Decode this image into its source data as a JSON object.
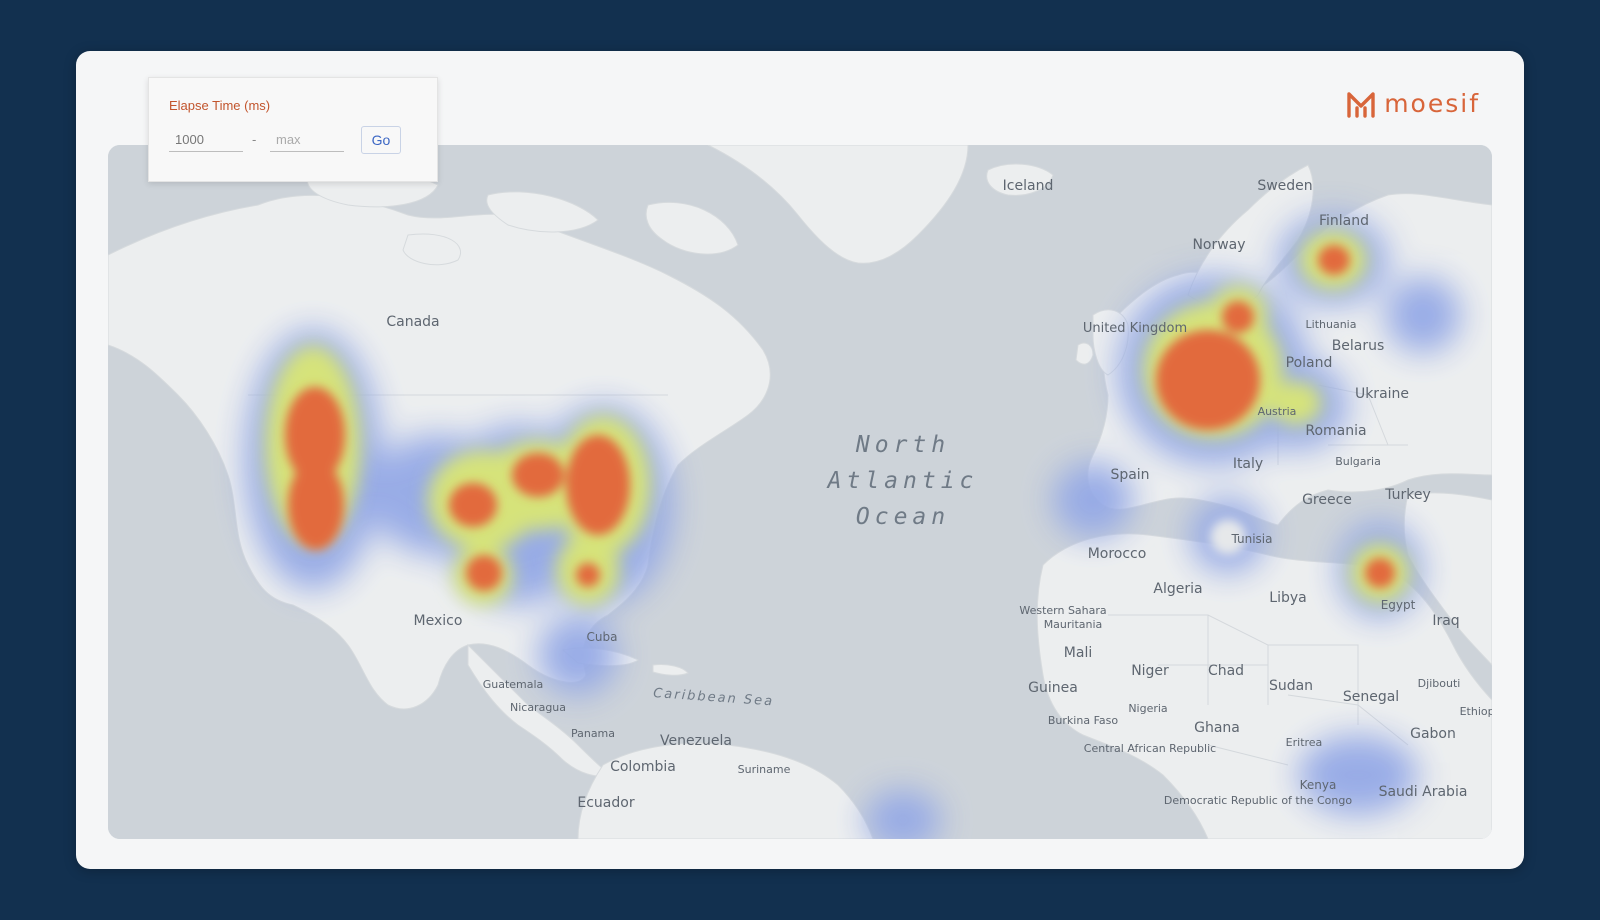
{
  "filter": {
    "title": "Elapse Time (ms)",
    "min_value": "1000",
    "max_placeholder": "max",
    "separator": "-",
    "go_label": "Go"
  },
  "brand": {
    "name": "moesif",
    "logo_icon": "moesif-logo-icon",
    "color": "#d8653a"
  },
  "map": {
    "ocean_label": [
      "North",
      "Atlantic",
      "Ocean"
    ],
    "sea_label": "Caribbean Sea",
    "place_labels": [
      "Canada",
      "Mexico",
      "Cuba",
      "Guatemala",
      "Nicaragua",
      "Panama",
      "Venezuela",
      "Colombia",
      "Suriname",
      "Ecuador",
      "Iceland",
      "Sweden",
      "Finland",
      "Norway",
      "United Kingdom",
      "Lithuania",
      "Belarus",
      "Poland",
      "Ukraine",
      "Austria",
      "Romania",
      "Bulgaria",
      "Italy",
      "Spain",
      "Tunisia",
      "Greece",
      "Turkey",
      "Morocco",
      "Algeria",
      "Libya",
      "Egypt",
      "Western Sahara",
      "Mauritania",
      "Mali",
      "Niger",
      "Chad",
      "Sudan",
      "Senegal",
      "Guinea",
      "Burkina Faso",
      "Nigeria",
      "Ghana",
      "Central African Republic",
      "Eritrea",
      "Djibouti",
      "Ethiopia",
      "Gabon",
      "Democratic Republic of the Congo",
      "Kenya",
      "Saudi Arabia",
      "Iraq"
    ],
    "colors": {
      "ocean": "#cdd3d9",
      "land": "#eceeef",
      "heat_low": "#94a9e6",
      "heat_mid": "#d6e37a",
      "heat_high": "#e26a3c"
    }
  }
}
